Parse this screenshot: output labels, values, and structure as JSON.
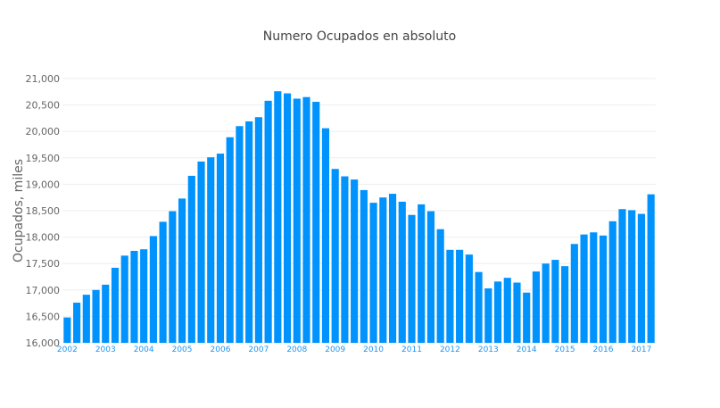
{
  "chart_data": {
    "type": "bar",
    "title": "Numero Ocupados en absoluto",
    "xlabel": "",
    "ylabel": "Ocupados, miles",
    "ylim": [
      16000,
      21000
    ],
    "yticks": [
      16000,
      16500,
      17000,
      17500,
      18000,
      18500,
      19000,
      19500,
      20000,
      20500,
      21000
    ],
    "ytick_labels": [
      "16,000",
      "16,500",
      "17,000",
      "17,500",
      "18,000",
      "18,500",
      "19,000",
      "19,500",
      "20,000",
      "20,500",
      "21,000"
    ],
    "xtick_labels": [
      "2002",
      "2003",
      "2004",
      "2005",
      "2006",
      "2007",
      "2008",
      "2009",
      "2010",
      "2011",
      "2012",
      "2013",
      "2014",
      "2015",
      "2016",
      "2017"
    ],
    "grid": true,
    "bar_color": "#0093fd",
    "x": [
      "2002-Q1",
      "2002-Q2",
      "2002-Q3",
      "2002-Q4",
      "2003-Q1",
      "2003-Q2",
      "2003-Q3",
      "2003-Q4",
      "2004-Q1",
      "2004-Q2",
      "2004-Q3",
      "2004-Q4",
      "2005-Q1",
      "2005-Q2",
      "2005-Q3",
      "2005-Q4",
      "2006-Q1",
      "2006-Q2",
      "2006-Q3",
      "2006-Q4",
      "2007-Q1",
      "2007-Q2",
      "2007-Q3",
      "2007-Q4",
      "2008-Q1",
      "2008-Q2",
      "2008-Q3",
      "2008-Q4",
      "2009-Q1",
      "2009-Q2",
      "2009-Q3",
      "2009-Q4",
      "2010-Q1",
      "2010-Q2",
      "2010-Q3",
      "2010-Q4",
      "2011-Q1",
      "2011-Q2",
      "2011-Q3",
      "2011-Q4",
      "2012-Q1",
      "2012-Q2",
      "2012-Q3",
      "2012-Q4",
      "2013-Q1",
      "2013-Q2",
      "2013-Q3",
      "2013-Q4",
      "2014-Q1",
      "2014-Q2",
      "2014-Q3",
      "2014-Q4",
      "2015-Q1",
      "2015-Q2",
      "2015-Q3",
      "2015-Q4",
      "2016-Q1",
      "2016-Q2",
      "2016-Q3",
      "2016-Q4",
      "2017-Q1",
      "2017-Q2"
    ],
    "values": [
      16480,
      16760,
      16910,
      17000,
      17100,
      17420,
      17650,
      17740,
      17770,
      18020,
      18290,
      18490,
      18730,
      19160,
      19430,
      19510,
      19580,
      19890,
      20100,
      20190,
      20270,
      20580,
      20760,
      20720,
      20620,
      20650,
      20560,
      20060,
      19290,
      19150,
      19090,
      18890,
      18650,
      18750,
      18820,
      18670,
      18420,
      18620,
      18490,
      18150,
      17760,
      17760,
      17670,
      17340,
      17030,
      17160,
      17230,
      17140,
      16950,
      17350,
      17500,
      17570,
      17450,
      17870,
      18050,
      18090,
      18030,
      18300,
      18530,
      18510,
      18440,
      18810
    ]
  }
}
